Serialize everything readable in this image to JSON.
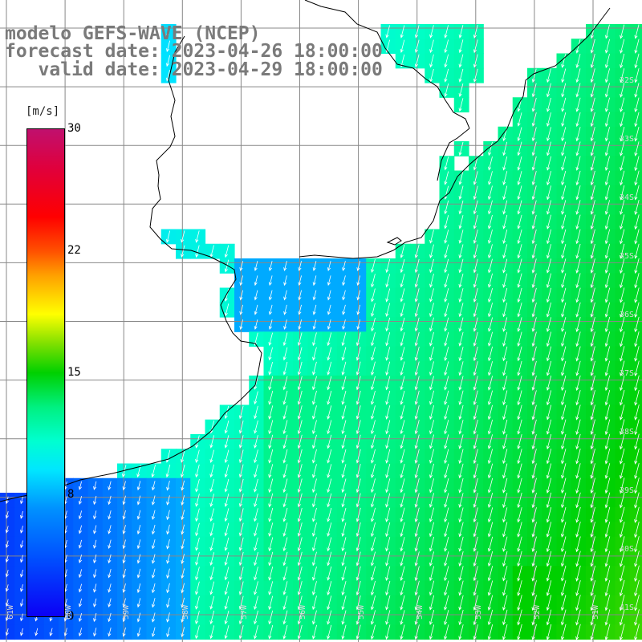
{
  "title": {
    "line1": "modelo GEFS-WAVE (NCEP)",
    "line2": "forecast date: 2023-04-26 18:00:00",
    "line3": "   valid date: 2023-04-29 18:00:00"
  },
  "colorbar": {
    "unit": "[m/s]",
    "ticks": [
      "30",
      "22",
      "15",
      "8",
      "0"
    ],
    "range": [
      0,
      30
    ],
    "colors": [
      "#0b00f5",
      "#00e6ff",
      "#00d000",
      "#ffff00",
      "#ff0000",
      "#c0106e"
    ]
  },
  "grid": {
    "lat_labels": [
      "32S",
      "33S",
      "34S",
      "35S",
      "36S",
      "37S",
      "38S",
      "39S",
      "40S",
      "41S"
    ],
    "lon_labels": [
      "61W",
      "60W",
      "59W",
      "58W",
      "57W",
      "56W",
      "55W",
      "54W",
      "53W",
      "52W",
      "51W"
    ]
  },
  "field": {
    "variable": "wind speed and direction",
    "land_color": "#ffffff",
    "grid_color": "#7f7f7f",
    "coast_color": "#000000",
    "arrow_color": "#ffffff"
  }
}
